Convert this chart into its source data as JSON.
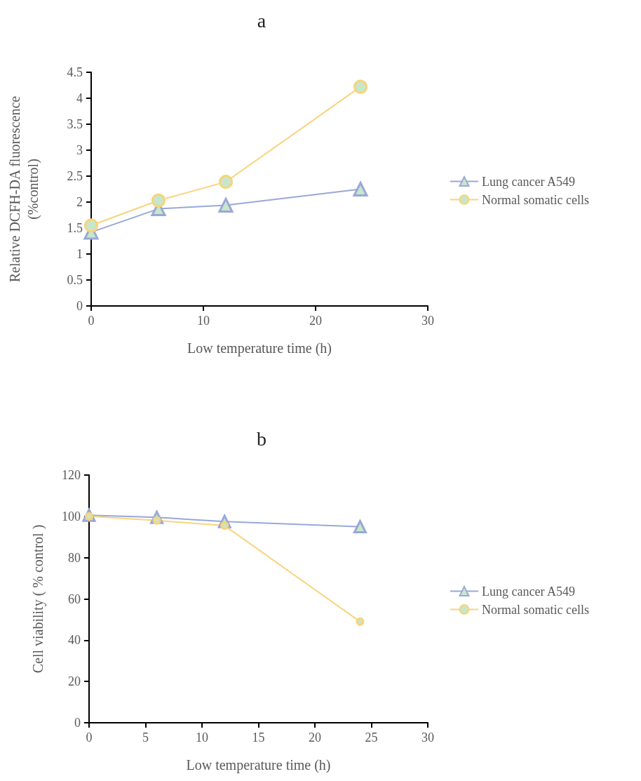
{
  "chart_data": [
    {
      "type": "line",
      "title": "a",
      "xlabel": "Low temperature time (h)",
      "ylabel": "Relative DCFH-DA fluorescence\n(%control)",
      "x": [
        0,
        6,
        12,
        24
      ],
      "xlim": [
        0,
        30
      ],
      "xticks": [
        0,
        10,
        20,
        30
      ],
      "ylim": [
        0,
        4.5
      ],
      "yticks": [
        0,
        0.5,
        1,
        1.5,
        2,
        2.5,
        3,
        3.5,
        4,
        4.5
      ],
      "grid": false,
      "legend": "right",
      "series": [
        {
          "name": "Lung cancer A549",
          "color": "#98a8d8",
          "marker": "triangle",
          "values": [
            1.42,
            1.87,
            1.94,
            2.25
          ]
        },
        {
          "name": "Normal somatic cells",
          "color": "#f8d47c",
          "marker": "circle",
          "values": [
            1.55,
            2.03,
            2.39,
            4.22
          ]
        }
      ]
    },
    {
      "type": "line",
      "title": "b",
      "xlabel": "Low temperature time (h)",
      "ylabel": "Cell viability ( % control )",
      "x": [
        0,
        6,
        12,
        24
      ],
      "xlim": [
        0,
        30
      ],
      "xticks": [
        0,
        5,
        10,
        15,
        20,
        25,
        30
      ],
      "ylim": [
        0,
        120
      ],
      "yticks": [
        0,
        20,
        40,
        60,
        80,
        100,
        120
      ],
      "grid": false,
      "legend": "right",
      "series": [
        {
          "name": "Lung cancer A549",
          "color": "#98a8d8",
          "marker": "triangle",
          "values": [
            100.5,
            99.5,
            97.5,
            95
          ]
        },
        {
          "name": "Normal somatic cells",
          "color": "#f8d47c",
          "marker": "circle",
          "values": [
            100,
            98,
            95.5,
            49
          ]
        }
      ]
    }
  ]
}
